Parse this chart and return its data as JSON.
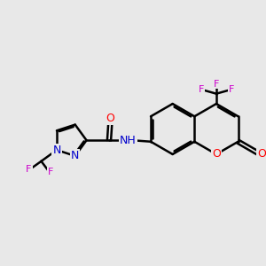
{
  "bg_color": "#e8e8e8",
  "bond_color": "#000000",
  "bond_width": 1.8,
  "atom_colors": {
    "O": "#ff0000",
    "N": "#0000cc",
    "F": "#cc00cc",
    "C": "#000000",
    "H": "#008080"
  },
  "font_size_atom": 9,
  "font_size_small": 8
}
